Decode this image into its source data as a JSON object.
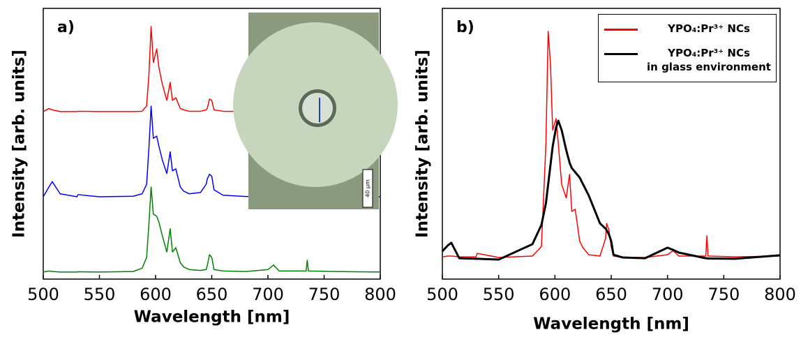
{
  "chart_data": [
    {
      "type": "line",
      "panel_label": "a)",
      "xlabel": "Wavelength [nm]",
      "ylabel": "Intensity [arb. units]",
      "inset_scale_label": "40 μm",
      "xlim": [
        500,
        800
      ],
      "xticks": [
        500,
        550,
        600,
        650,
        700,
        750,
        800
      ],
      "ylim": [
        0,
        100
      ],
      "x": [
        500,
        505,
        508,
        515,
        530,
        531,
        550,
        580,
        588,
        592,
        594,
        596,
        598,
        601,
        603,
        606,
        610,
        613,
        615,
        618,
        622,
        625,
        630,
        640,
        645,
        646,
        648,
        650,
        652,
        660,
        680,
        700,
        705,
        710,
        734,
        735,
        736,
        760,
        800
      ],
      "series": [
        {
          "color": "#ff0000",
          "values": [
            61.9,
            63,
            62.5,
            61.9,
            61.9,
            62,
            61.9,
            61.9,
            62,
            64,
            75,
            93.3,
            80,
            85,
            78,
            72,
            66,
            72.7,
            66,
            67,
            63,
            62.5,
            62,
            62,
            62.5,
            63,
            66.5,
            66,
            62.5,
            62,
            61.9,
            62,
            62.3,
            62,
            61.9,
            62,
            61.9,
            61.9,
            61.9
          ]
        },
        {
          "color": "#0000ff",
          "values": [
            30.4,
            34,
            36,
            31.5,
            30.4,
            31.2,
            30.4,
            30.6,
            31.5,
            35,
            48,
            63.9,
            52,
            52.8,
            49,
            44,
            39,
            47,
            40,
            40.7,
            34,
            32.5,
            31.5,
            32,
            35,
            37,
            38.7,
            38,
            33,
            31,
            30.5,
            30.6,
            30.6,
            30.5,
            30.4,
            30.5,
            30.4,
            30.4,
            30.4
          ]
        },
        {
          "color": "#008000",
          "values": [
            2.6,
            3,
            2.8,
            2.6,
            2.6,
            2.7,
            2.6,
            2.8,
            4,
            8,
            20,
            34,
            24,
            23.2,
            21,
            16,
            10,
            18.6,
            10,
            11.6,
            6,
            4.5,
            3.5,
            3.2,
            3.5,
            5,
            9,
            8,
            3.5,
            3,
            2.8,
            3.5,
            5.2,
            3,
            3,
            7,
            3,
            2.8,
            2.6
          ]
        }
      ]
    },
    {
      "type": "line",
      "panel_label": "b)",
      "xlabel": "Wavelength [nm]",
      "ylabel": "Intensity [arb. units]",
      "legend": "upper right",
      "xlim": [
        500,
        800
      ],
      "xticks": [
        500,
        550,
        600,
        650,
        700,
        750,
        800
      ],
      "ylim": [
        0,
        100
      ],
      "x": [
        500,
        505,
        508,
        515,
        530,
        531,
        550,
        580,
        588,
        592,
        594,
        596,
        598,
        601,
        603,
        606,
        610,
        613,
        615,
        618,
        622,
        625,
        630,
        640,
        645,
        646,
        648,
        650,
        652,
        660,
        680,
        700,
        705,
        710,
        734,
        735,
        736,
        760,
        800
      ],
      "series": [
        {
          "name": "YPO₄:Pr³⁺ NCs",
          "color": "#ff0000",
          "values": [
            8.2,
            8.5,
            8.5,
            8.2,
            8.2,
            9.5,
            8,
            8.5,
            12,
            50,
            91.5,
            80,
            55,
            59.3,
            50,
            35,
            30,
            38.7,
            25,
            25.8,
            14,
            11.5,
            9,
            8.5,
            15,
            20.6,
            18,
            12,
            8.5,
            8,
            8,
            9,
            10.5,
            8.5,
            8.5,
            16,
            8.5,
            8.2,
            8.5
          ]
        },
        {
          "name": "YPO₄:Pr³⁺ NCs\nin glass environment",
          "color": "#000000",
          "values": [
            10.3,
            12.5,
            13.4,
            7.7,
            7.5,
            7.5,
            7.2,
            12.9,
            20,
            28,
            35,
            42,
            49,
            56,
            58.5,
            55,
            47.7,
            43,
            41,
            39.5,
            37.5,
            35,
            30.9,
            20.6,
            18.6,
            18,
            16.5,
            14,
            9,
            8,
            7.7,
            11.6,
            10.8,
            9.8,
            7.7,
            7.7,
            7.6,
            7.5,
            8.8
          ]
        }
      ]
    }
  ]
}
